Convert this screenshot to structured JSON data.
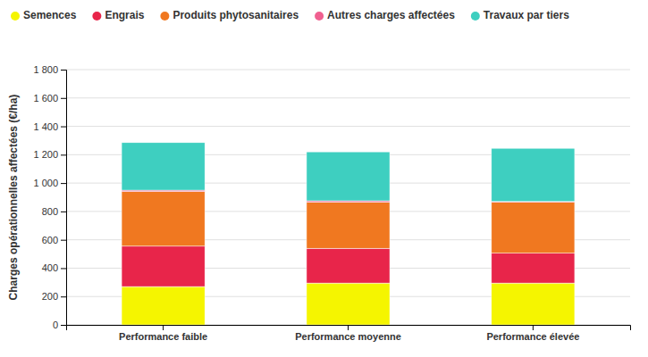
{
  "chart_data": {
    "type": "bar",
    "stacked": true,
    "grid": true,
    "legend": "top",
    "categories": [
      "Performance faible",
      "Performance moyenne",
      "Performance élevée"
    ],
    "series": [
      {
        "name": "Semences",
        "color": "#f5f500",
        "values": [
          270,
          295,
          295
        ]
      },
      {
        "name": "Engrais",
        "color": "#e8254a",
        "values": [
          285,
          245,
          210
        ]
      },
      {
        "name": "Produits phytosanitaires",
        "color": "#f07820",
        "values": [
          385,
          325,
          360
        ]
      },
      {
        "name": "Autres charges affectées",
        "color": "#f06090",
        "values": [
          10,
          10,
          5
        ]
      },
      {
        "name": "Travaux par tiers",
        "color": "#3ecfc0",
        "values": [
          335,
          345,
          375
        ]
      }
    ],
    "ylabel": "Charges opérationnelles affectées (€/ha)",
    "ylim": [
      0,
      1800
    ],
    "yticks": [
      0,
      200,
      400,
      600,
      800,
      {
        "value": 1000,
        "label": "1 000"
      },
      {
        "value": 1200,
        "label": "1 200"
      },
      {
        "value": 1400,
        "label": "1 400"
      },
      {
        "value": 1600,
        "label": "1 600"
      },
      {
        "value": 1800,
        "label": "1 800"
      }
    ]
  }
}
